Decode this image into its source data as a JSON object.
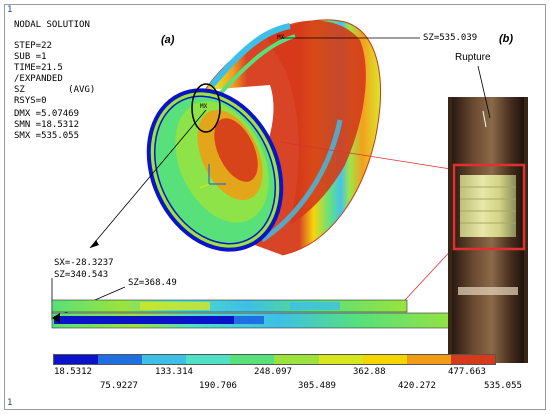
{
  "window": {
    "corner_top": "1",
    "corner_bottom": "1"
  },
  "info": [
    "NODAL SOLUTION",
    "STEP=22",
    "SUB =1",
    "TIME=21.5",
    "/EXPANDED",
    "SZ        (AVG)",
    "RSYS=0",
    "DMX =5.07469",
    "SMN =18.5312",
    "SMX =535.055"
  ],
  "panel_a": "(a)",
  "panel_b": "(b)",
  "rupture_label": "Rupture",
  "markers": {
    "max_label": "MX",
    "min_label": "MX",
    "sz_top": "SZ=535.039",
    "sx_probe": "SX=-28.3237",
    "sz_probe": "SZ=340.543",
    "sz_section": "SZ=368.49"
  },
  "legend": {
    "row1": [
      "18.5312",
      "133.314",
      "248.097",
      "362.88",
      "477.663"
    ],
    "row2": [
      "75.9227",
      "190.706",
      "305.489",
      "420.272",
      "535.055"
    ],
    "colors": [
      "#0a13c9",
      "#1f6fe0",
      "#3dbfe8",
      "#4fe0c6",
      "#58e07a",
      "#9be33c",
      "#d8e61e",
      "#f5d400",
      "#f29b14",
      "#d63a1a"
    ]
  },
  "icons": [
    "coordinate-triad-icon",
    "rupture-pointer-icon"
  ]
}
